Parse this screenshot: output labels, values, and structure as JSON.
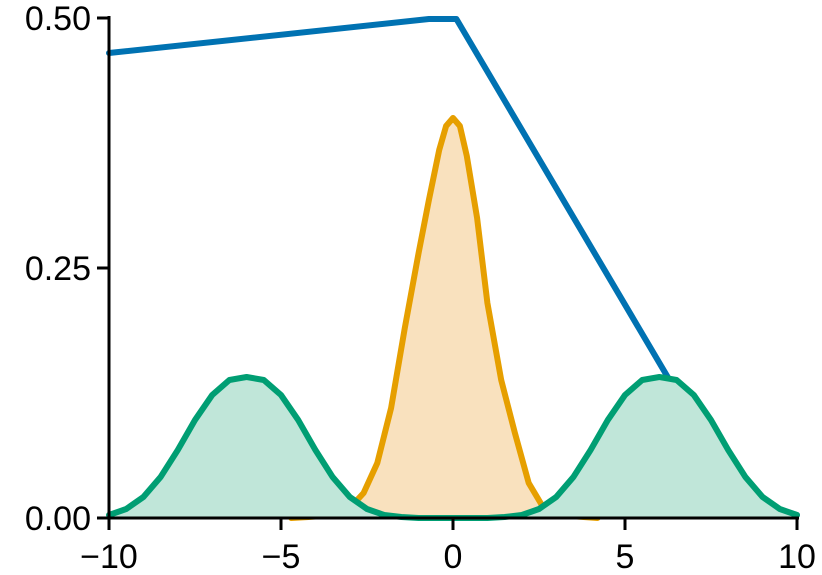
{
  "chart_data": {
    "type": "line",
    "title": "",
    "xlabel": "",
    "ylabel": "",
    "xlim": [
      -10,
      10
    ],
    "ylim": [
      0,
      0.5
    ],
    "grid": false,
    "x_ticks": [
      -10,
      -5,
      0,
      5,
      10
    ],
    "x_tick_labels": [
      "−10",
      "−5",
      "0",
      "5",
      "10"
    ],
    "y_ticks": [
      0,
      0.25,
      0.5
    ],
    "y_tick_labels": [
      "0.00",
      "0.25",
      "0.50"
    ],
    "series": [
      {
        "color": "#0072b2",
        "filled": false,
        "x": [
          -10,
          -0.7,
          0.1,
          8.3,
          10
        ],
        "y": [
          0.465,
          0.499,
          0.499,
          0.021,
          0.003
        ]
      },
      {
        "color": "#e69f00",
        "fill_color": "#f9e1be",
        "filled": true,
        "x": [
          -4.7,
          -4.2,
          -3.8,
          -3.4,
          -3.0,
          -2.6,
          -2.2,
          -1.8,
          -1.4,
          -1.0,
          -0.7,
          -0.4,
          -0.2,
          0.0,
          0.2,
          0.4,
          0.7,
          1.0,
          1.4,
          1.8,
          2.2,
          2.6,
          3.0,
          3.4,
          3.8,
          4.2
        ],
        "y": [
          0.0,
          0.001,
          0.002,
          0.004,
          0.01,
          0.025,
          0.055,
          0.11,
          0.19,
          0.265,
          0.318,
          0.368,
          0.392,
          0.4,
          0.392,
          0.362,
          0.3,
          0.215,
          0.138,
          0.085,
          0.035,
          0.012,
          0.004,
          0.002,
          0.001,
          0.0
        ]
      },
      {
        "color": "#009e73",
        "fill_color": "#c0e6d9",
        "filled": true,
        "x": [
          -10.0,
          -9.5,
          -9.0,
          -8.5,
          -8.0,
          -7.5,
          -7.0,
          -6.5,
          -6.0,
          -5.5,
          -5.0,
          -4.5,
          -4.0,
          -3.5,
          -3.0,
          -2.5,
          -2.0,
          -1.5,
          -1.0,
          -0.5,
          0.0
        ],
        "y": [
          0.003,
          0.009,
          0.021,
          0.041,
          0.068,
          0.098,
          0.123,
          0.138,
          0.141,
          0.138,
          0.123,
          0.098,
          0.068,
          0.041,
          0.021,
          0.009,
          0.003,
          0.001,
          0.0,
          0.0,
          0.0
        ]
      },
      {
        "color": "#009e73",
        "fill_color": "#c0e6d9",
        "filled": true,
        "x": [
          0.0,
          0.5,
          1.0,
          1.5,
          2.0,
          2.5,
          3.0,
          3.5,
          4.0,
          4.5,
          5.0,
          5.5,
          6.0,
          6.5,
          7.0,
          7.5,
          8.0,
          8.5,
          9.0,
          9.5,
          10.0
        ],
        "y": [
          0.0,
          0.0,
          0.0,
          0.001,
          0.003,
          0.009,
          0.021,
          0.041,
          0.068,
          0.098,
          0.123,
          0.138,
          0.141,
          0.138,
          0.123,
          0.098,
          0.068,
          0.041,
          0.021,
          0.009,
          0.003
        ]
      }
    ]
  }
}
